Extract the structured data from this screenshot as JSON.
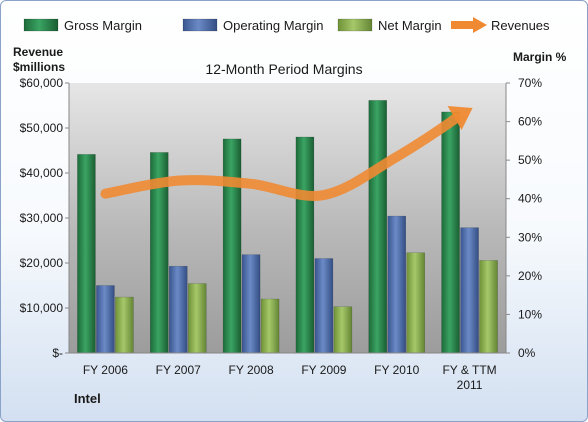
{
  "chart_data": {
    "type": "bar",
    "title": "12-Month Period Margins",
    "categories": [
      "FY 2006",
      "FY 2007",
      "FY 2008",
      "FY 2009",
      "FY 2010",
      "FY & TTM 2011"
    ],
    "y_left": {
      "label_line1": "Revenue",
      "label_line2": "$millions",
      "ylim": [
        0,
        60000
      ],
      "ticks": [
        "$-",
        "$10,000",
        "$20,000",
        "$30,000",
        "$40,000",
        "$50,000",
        "$60,000"
      ]
    },
    "y_right": {
      "label": "Margin %",
      "ylim": [
        0,
        70
      ],
      "ticks": [
        "0%",
        "10%",
        "20%",
        "30%",
        "40%",
        "50%",
        "60%",
        "70%"
      ]
    },
    "series": [
      {
        "name": "Gross Margin",
        "axis": "right",
        "color": "#2e8b4e",
        "values": [
          51.5,
          52.0,
          55.5,
          56.0,
          65.5,
          62.5
        ]
      },
      {
        "name": "Operating Margin",
        "axis": "right",
        "color": "#4f6fb0",
        "values": [
          17.5,
          22.5,
          25.5,
          24.5,
          35.5,
          32.5
        ]
      },
      {
        "name": "Net Margin",
        "axis": "right",
        "color": "#8db34e",
        "values": [
          14.5,
          18.0,
          14.0,
          12.0,
          26.0,
          24.0
        ]
      },
      {
        "name": "Revenues",
        "axis": "left",
        "type": "line",
        "color": "#ef8a33",
        "values": [
          35400,
          38300,
          37600,
          35100,
          43600,
          54000
        ]
      }
    ],
    "company": "Intel",
    "legend_position": "top",
    "grid": false
  }
}
